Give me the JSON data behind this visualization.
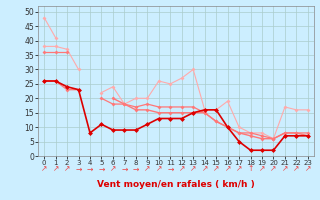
{
  "title": "",
  "xlabel": "Vent moyen/en rafales ( km/h )",
  "x": [
    0,
    1,
    2,
    3,
    4,
    5,
    6,
    7,
    8,
    9,
    10,
    11,
    12,
    13,
    14,
    15,
    16,
    17,
    18,
    19,
    20,
    21,
    22,
    23
  ],
  "line1": [
    48,
    41,
    null,
    null,
    null,
    null,
    null,
    null,
    null,
    null,
    null,
    null,
    null,
    null,
    null,
    null,
    null,
    null,
    null,
    null,
    null,
    null,
    null,
    null
  ],
  "line2": [
    38,
    38,
    37,
    30,
    null,
    22,
    24,
    18,
    20,
    20,
    26,
    25,
    27,
    30,
    16,
    16,
    19,
    10,
    8,
    8,
    6,
    17,
    16,
    16
  ],
  "line3": [
    36,
    36,
    36,
    null,
    null,
    20,
    18,
    18,
    17,
    18,
    17,
    17,
    17,
    17,
    15,
    12,
    10,
    8,
    8,
    7,
    6,
    8,
    8,
    8
  ],
  "line4_dark": [
    26,
    26,
    24,
    23,
    8,
    11,
    9,
    9,
    9,
    11,
    13,
    13,
    13,
    15,
    16,
    16,
    10,
    5,
    2,
    2,
    2,
    7,
    7,
    7
  ],
  "line5_dark": [
    26,
    26,
    23,
    23,
    null,
    null,
    20,
    18,
    16,
    16,
    15,
    15,
    15,
    15,
    15,
    12,
    10,
    8,
    7,
    6,
    6,
    8,
    8,
    7
  ],
  "ylim": [
    0,
    50
  ],
  "xlim": [
    -0.5,
    23.5
  ],
  "bg_color": "#cceeff",
  "grid_color": "#aacccc",
  "light_pink": "#ffaaaa",
  "medium_pink": "#ff7777",
  "dark_red": "#dd0000",
  "arrow_color": "#ee4444",
  "arrow_chars": [
    "↗",
    "↗",
    "↗",
    "→",
    "→",
    "→",
    "↗",
    "→",
    "→",
    "↗",
    "↗",
    "→",
    "↗",
    "↗",
    "↗",
    "↗",
    "↗",
    "↗",
    "↑",
    "↗",
    "↗",
    "↗",
    "↗",
    "↗"
  ]
}
